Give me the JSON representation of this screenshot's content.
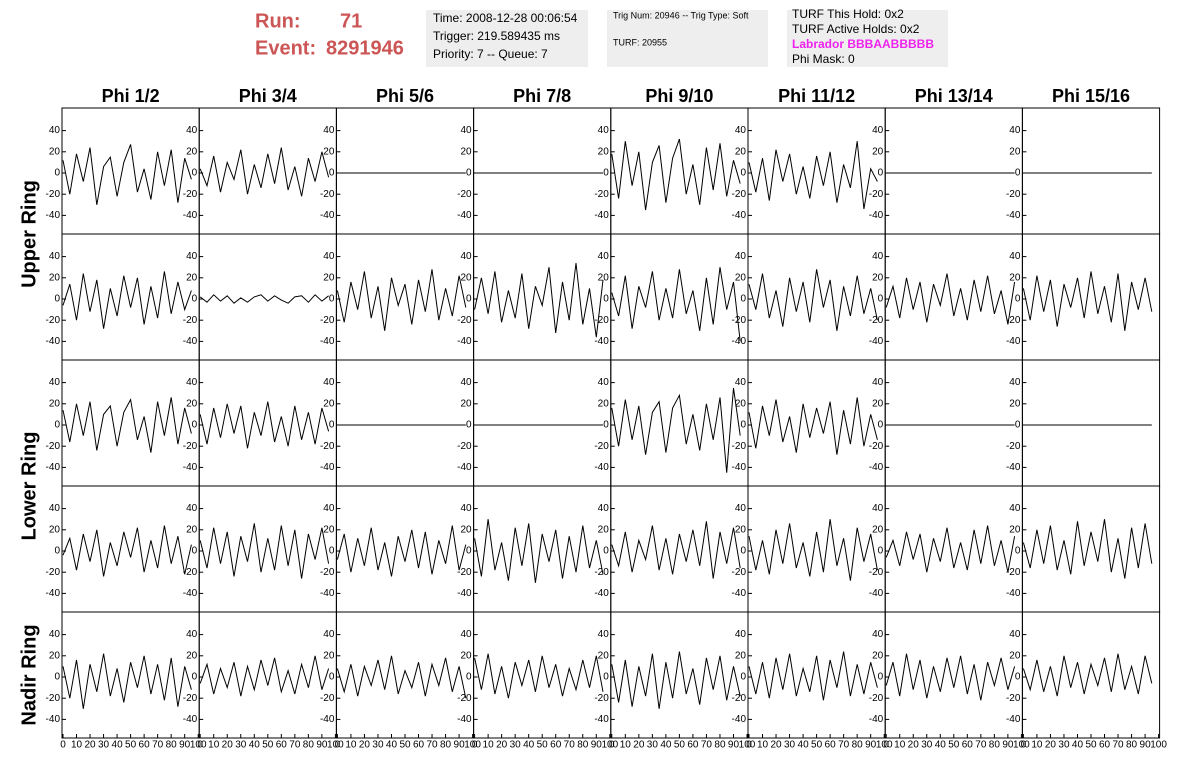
{
  "header": {
    "run_label": "Run:",
    "run": "71",
    "event_label": "Event:",
    "event": "8291946",
    "time": "Time: 2008-12-28 00:06:54",
    "trigger": "Trigger: 219.589435 ms",
    "priority": "Priority: 7 -- Queue: 7",
    "trig_num": "Trig Num: 20946 -- Trig Type: Soft",
    "turf": "TURF: 20955",
    "turf_hold": "TURF This Hold: 0x2",
    "turf_active": "TURF Active Holds: 0x2",
    "labrador": "Labrador BBBAABBBBB",
    "phi_mask": "Phi Mask: 0"
  },
  "chart_data": {
    "type": "line",
    "color": "#000000",
    "columns": [
      "Phi 1/2",
      "Phi 3/4",
      "Phi 5/6",
      "Phi 7/8",
      "Phi 9/10",
      "Phi 11/12",
      "Phi 13/14",
      "Phi 15/16"
    ],
    "row_labels": [
      "Upper Ring",
      "Lower Ring",
      "Nadir Ring"
    ],
    "xlim": [
      0,
      100
    ],
    "xticks": [
      0,
      10,
      20,
      30,
      40,
      50,
      60,
      70,
      80,
      90,
      100
    ],
    "ylim": [
      -50,
      50
    ],
    "yticks": [
      -40,
      -20,
      0,
      20,
      40
    ],
    "x": [
      0,
      5,
      10,
      15,
      20,
      25,
      30,
      35,
      40,
      45,
      50,
      55,
      60,
      65,
      70,
      75,
      80,
      85,
      90,
      95
    ],
    "series": [
      {
        "values": [
          12,
          -20,
          18,
          -8,
          24,
          -30,
          6,
          15,
          -22,
          10,
          27,
          -18,
          4,
          -25,
          20,
          -12,
          22,
          -28,
          14,
          -6
        ]
      },
      {
        "values": [
          4,
          -12,
          16,
          -18,
          10,
          -6,
          22,
          -20,
          8,
          -14,
          18,
          -10,
          24,
          -16,
          6,
          -22,
          14,
          -8,
          20,
          -4
        ]
      },
      {
        "values": [
          0,
          0,
          0,
          0,
          0,
          0,
          0,
          0,
          0,
          0,
          0,
          0,
          0,
          0,
          0,
          0,
          0,
          0,
          0,
          0
        ]
      },
      {
        "values": [
          0,
          0,
          0,
          0,
          0,
          0,
          0,
          0,
          0,
          0,
          0,
          0,
          0,
          0,
          0,
          0,
          0,
          0,
          0,
          0
        ]
      },
      {
        "values": [
          18,
          -24,
          30,
          -12,
          20,
          -35,
          10,
          26,
          -28,
          14,
          32,
          -20,
          8,
          -30,
          24,
          -16,
          28,
          -22,
          12,
          -10
        ]
      },
      {
        "values": [
          10,
          -18,
          14,
          -26,
          22,
          -8,
          18,
          -20,
          6,
          -24,
          16,
          -12,
          20,
          -28,
          8,
          -14,
          30,
          -34,
          4,
          -8
        ]
      },
      {
        "values": [
          0,
          0,
          0,
          0,
          0,
          0,
          0,
          0,
          0,
          0,
          0,
          0,
          0,
          0,
          0,
          0,
          0,
          0,
          0,
          0
        ]
      },
      {
        "values": [
          0,
          0,
          0,
          0,
          0,
          0,
          0,
          0,
          0,
          0,
          0,
          0,
          0,
          0,
          0,
          0,
          0,
          0,
          0,
          0
        ]
      },
      {
        "values": [
          -6,
          14,
          -20,
          24,
          -12,
          18,
          -28,
          10,
          -16,
          22,
          -8,
          20,
          -24,
          12,
          -18,
          26,
          -14,
          16,
          -10,
          8
        ]
      },
      {
        "values": [
          2,
          -3,
          4,
          -2,
          3,
          -4,
          1,
          -3,
          2,
          4,
          -2,
          3,
          -1,
          -4,
          2,
          3,
          -3,
          4,
          -2,
          3
        ]
      },
      {
        "values": [
          8,
          -22,
          16,
          -10,
          26,
          -18,
          12,
          -30,
          20,
          -6,
          14,
          -24,
          18,
          -12,
          28,
          -20,
          10,
          -16,
          22,
          -8
        ]
      },
      {
        "values": [
          -10,
          20,
          -14,
          26,
          -22,
          8,
          -18,
          24,
          -28,
          12,
          -6,
          30,
          -32,
          16,
          -20,
          34,
          -24,
          10,
          -36,
          18
        ]
      },
      {
        "values": [
          6,
          -16,
          22,
          -28,
          12,
          -8,
          26,
          -20,
          10,
          -18,
          28,
          -14,
          8,
          -30,
          20,
          -24,
          30,
          -10,
          16,
          -40
        ]
      },
      {
        "values": [
          14,
          -10,
          24,
          -18,
          8,
          -26,
          20,
          -12,
          16,
          -22,
          28,
          -8,
          18,
          -30,
          12,
          -16,
          22,
          -14,
          10,
          -20
        ]
      },
      {
        "values": [
          -8,
          12,
          -18,
          20,
          -10,
          16,
          -22,
          14,
          -6,
          24,
          -16,
          10,
          -20,
          18,
          -12,
          22,
          -14,
          8,
          -24,
          16
        ]
      },
      {
        "values": [
          10,
          -20,
          22,
          -12,
          18,
          -26,
          14,
          -8,
          20,
          -18,
          26,
          -14,
          12,
          -22,
          24,
          -30,
          16,
          -10,
          20,
          -12
        ]
      },
      {
        "values": [
          14,
          -16,
          20,
          -10,
          22,
          -24,
          10,
          18,
          -20,
          12,
          24,
          -14,
          8,
          -26,
          22,
          -10,
          26,
          -18,
          16,
          -8
        ]
      },
      {
        "values": [
          10,
          -18,
          16,
          -12,
          20,
          -8,
          18,
          -22,
          12,
          -10,
          22,
          -16,
          8,
          -20,
          18,
          -14,
          12,
          -18,
          16,
          -6
        ]
      },
      {
        "values": [
          0,
          0,
          0,
          0,
          0,
          0,
          0,
          0,
          0,
          0,
          0,
          0,
          0,
          0,
          0,
          0,
          0,
          0,
          0,
          0
        ]
      },
      {
        "values": [
          0,
          0,
          0,
          0,
          0,
          0,
          0,
          0,
          0,
          0,
          0,
          0,
          0,
          0,
          0,
          0,
          0,
          0,
          0,
          0
        ]
      },
      {
        "values": [
          16,
          -20,
          24,
          -14,
          18,
          -28,
          12,
          22,
          -26,
          16,
          28,
          -18,
          10,
          -24,
          20,
          -14,
          26,
          -45,
          35,
          -10
        ]
      },
      {
        "values": [
          12,
          -22,
          18,
          -10,
          24,
          -16,
          8,
          -26,
          20,
          -12,
          16,
          -8,
          22,
          -28,
          14,
          -18,
          26,
          -20,
          10,
          -14
        ]
      },
      {
        "values": [
          0,
          0,
          0,
          0,
          0,
          0,
          0,
          0,
          0,
          0,
          0,
          0,
          0,
          0,
          0,
          0,
          0,
          0,
          0,
          0
        ]
      },
      {
        "values": [
          0,
          0,
          0,
          0,
          0,
          0,
          0,
          0,
          0,
          0,
          0,
          0,
          0,
          0,
          0,
          0,
          0,
          0,
          0,
          0
        ]
      },
      {
        "values": [
          -4,
          12,
          -18,
          16,
          -10,
          20,
          -24,
          8,
          -14,
          18,
          -6,
          22,
          -20,
          10,
          -16,
          24,
          -12,
          14,
          -22,
          6
        ]
      },
      {
        "values": [
          10,
          -16,
          22,
          -12,
          18,
          -24,
          14,
          -10,
          26,
          -20,
          12,
          -18,
          24,
          -14,
          20,
          -26,
          16,
          -8,
          22,
          -12
        ]
      },
      {
        "values": [
          -8,
          16,
          -20,
          12,
          -14,
          22,
          -18,
          8,
          -24,
          14,
          -10,
          20,
          -16,
          18,
          -22,
          10,
          -12,
          24,
          -18,
          6
        ]
      },
      {
        "values": [
          12,
          -24,
          30,
          -18,
          8,
          -28,
          22,
          -14,
          26,
          -30,
          16,
          -10,
          20,
          -26,
          14,
          -20,
          24,
          -16,
          10,
          -22
        ]
      },
      {
        "values": [
          6,
          -14,
          18,
          -20,
          10,
          -8,
          24,
          -18,
          12,
          -22,
          16,
          -10,
          20,
          -14,
          28,
          -26,
          18,
          -12,
          22,
          -16
        ]
      },
      {
        "values": [
          14,
          -18,
          10,
          -22,
          20,
          -12,
          26,
          -16,
          8,
          -24,
          18,
          -20,
          30,
          -14,
          12,
          -28,
          22,
          -10,
          16,
          -18
        ]
      },
      {
        "values": [
          -6,
          10,
          -14,
          18,
          -8,
          16,
          -20,
          12,
          -10,
          22,
          -16,
          8,
          -18,
          20,
          -12,
          24,
          -14,
          10,
          -20,
          14
        ]
      },
      {
        "values": [
          8,
          -16,
          20,
          -12,
          24,
          -18,
          10,
          -22,
          28,
          -14,
          18,
          -10,
          30,
          -20,
          12,
          -26,
          22,
          -16,
          26,
          -12
        ]
      },
      {
        "values": [
          10,
          -20,
          16,
          -30,
          12,
          -14,
          22,
          -18,
          8,
          -24,
          14,
          -10,
          20,
          -16,
          12,
          -22,
          18,
          -28,
          10,
          -12
        ]
      },
      {
        "values": [
          -6,
          12,
          -16,
          8,
          -10,
          14,
          -18,
          10,
          -12,
          16,
          -8,
          18,
          -14,
          6,
          -16,
          12,
          -10,
          20,
          -12,
          8
        ]
      },
      {
        "values": [
          8,
          -14,
          12,
          -18,
          10,
          -8,
          16,
          -12,
          20,
          -16,
          6,
          -10,
          14,
          -18,
          12,
          -8,
          18,
          -14,
          10,
          -20
        ]
      },
      {
        "values": [
          18,
          -12,
          22,
          -16,
          10,
          -20,
          14,
          -8,
          16,
          -14,
          20,
          -10,
          12,
          -18,
          8,
          -12,
          16,
          -10,
          20,
          -14
        ]
      },
      {
        "values": [
          12,
          -24,
          16,
          -28,
          10,
          -18,
          22,
          -30,
          14,
          -20,
          24,
          -16,
          8,
          -26,
          18,
          -12,
          20,
          -22,
          10,
          -18
        ]
      },
      {
        "values": [
          10,
          -16,
          14,
          -20,
          18,
          -12,
          22,
          -18,
          8,
          -14,
          20,
          -22,
          16,
          -10,
          24,
          -18,
          12,
          -16,
          14,
          -10
        ]
      },
      {
        "values": [
          -8,
          14,
          -18,
          22,
          -12,
          16,
          -20,
          10,
          -14,
          18,
          -10,
          20,
          -16,
          12,
          -22,
          14,
          -8,
          18,
          -12,
          10
        ]
      },
      {
        "values": [
          8,
          -12,
          16,
          -14,
          10,
          -18,
          20,
          -10,
          14,
          -16,
          12,
          -8,
          18,
          -14,
          22,
          -12,
          10,
          -16,
          20,
          -6
        ]
      }
    ]
  }
}
